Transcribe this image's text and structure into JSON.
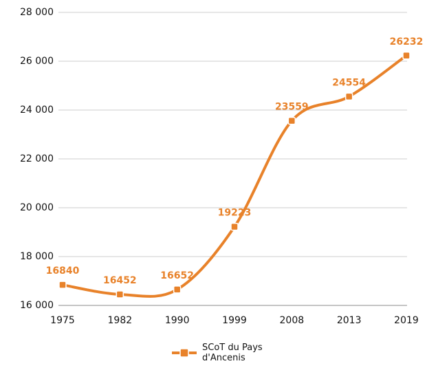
{
  "chart_data": {
    "type": "line",
    "categories": [
      "1975",
      "1982",
      "1990",
      "1999",
      "2008",
      "2013",
      "2019"
    ],
    "series": [
      {
        "name": "SCoT du Pays d'Ancenis",
        "color": "#e8822a",
        "values": [
          16840,
          16452,
          16652,
          19223,
          23559,
          24554,
          26232
        ]
      }
    ],
    "ylim": [
      16000,
      28000
    ],
    "yticks": [
      {
        "value": 16000,
        "label": "16 000"
      },
      {
        "value": 18000,
        "label": "18 000"
      },
      {
        "value": 20000,
        "label": "20 000"
      },
      {
        "value": 22000,
        "label": "22 000"
      },
      {
        "value": 24000,
        "label": "24 000"
      },
      {
        "value": 26000,
        "label": "26 000"
      },
      {
        "value": 28000,
        "label": "28 000"
      }
    ],
    "grid": true,
    "legend": "bottom"
  }
}
